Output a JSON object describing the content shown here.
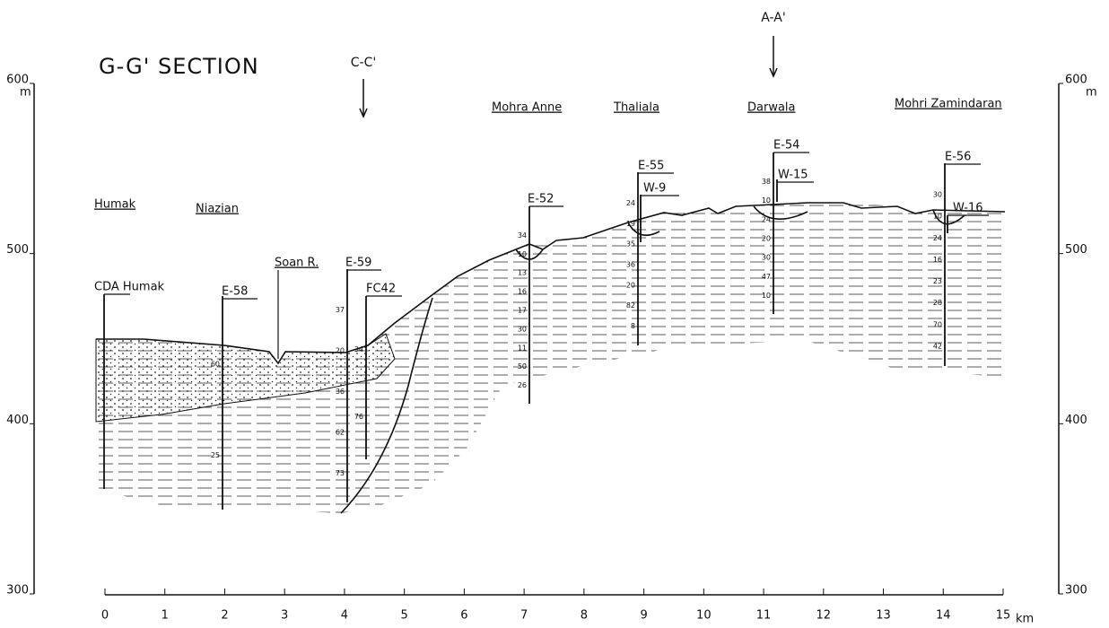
{
  "title": "G-G' SECTION",
  "section_markers": [
    "C-C'",
    "A-A'"
  ],
  "places": [
    "Humak",
    "Niazian",
    "Soan R.",
    "Mohra Anne",
    "Thaliala",
    "Darwala",
    "Mohri Zamindaran"
  ],
  "wells": [
    {
      "label": "CDA Humak",
      "depth_labels": []
    },
    {
      "label": "E-58",
      "depth_labels": [
        60,
        25
      ]
    },
    {
      "label": "E-59",
      "depth_labels": [
        37,
        20,
        36,
        62,
        73
      ]
    },
    {
      "label": "FC42",
      "depth_labels": [
        34,
        76
      ]
    },
    {
      "label": "E-52",
      "depth_labels": [
        34,
        10,
        13,
        16,
        17,
        30,
        11,
        50,
        26
      ]
    },
    {
      "label": "E-55",
      "depth_labels": [
        24,
        19,
        35,
        36,
        20,
        82,
        8
      ]
    },
    {
      "label": "W-9",
      "depth_labels": []
    },
    {
      "label": "E-54",
      "depth_labels": [
        38,
        10,
        24,
        20,
        30,
        47,
        10
      ]
    },
    {
      "label": "W-15",
      "depth_labels": []
    },
    {
      "label": "E-56",
      "depth_labels": [
        30,
        10,
        24,
        16,
        23,
        28,
        70,
        42
      ]
    },
    {
      "label": "W-16",
      "depth_labels": []
    }
  ],
  "elevation_axis": {
    "unit": "m",
    "ticks": [
      300,
      400,
      500,
      600
    ]
  },
  "distance_axis": {
    "unit": "km",
    "ticks": [
      0,
      1,
      2,
      3,
      4,
      5,
      6,
      7,
      8,
      9,
      10,
      11,
      12,
      13,
      14,
      15
    ]
  }
}
